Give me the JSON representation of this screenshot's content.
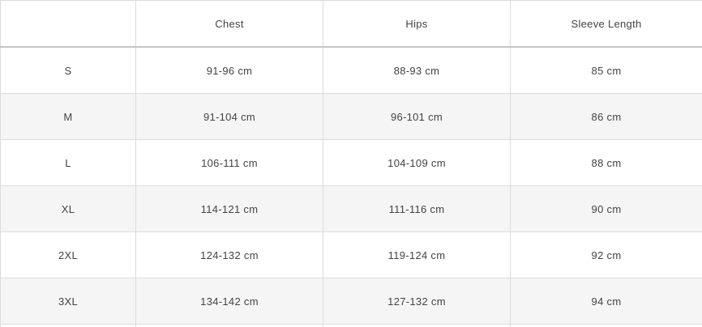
{
  "table": {
    "columns": [
      "",
      "Chest",
      "Hips",
      "Sleeve Length"
    ],
    "rows": [
      {
        "size": "S",
        "chest": "91-96 cm",
        "hips": "88-93 cm",
        "sleeve": "85 cm"
      },
      {
        "size": "M",
        "chest": "91-104 cm",
        "hips": "96-101 cm",
        "sleeve": "86 cm"
      },
      {
        "size": "L",
        "chest": "106-111 cm",
        "hips": "104-109 cm",
        "sleeve": "88 cm"
      },
      {
        "size": "XL",
        "chest": "114-121 cm",
        "hips": "111-116 cm",
        "sleeve": "90 cm"
      },
      {
        "size": "2XL",
        "chest": "124-132 cm",
        "hips": "119-124 cm",
        "sleeve": "92 cm"
      },
      {
        "size": "3XL",
        "chest": "134-142 cm",
        "hips": "127-132 cm",
        "sleeve": "94 cm"
      }
    ],
    "units": "cm"
  },
  "colors": {
    "row_stripe": "#f5f5f5",
    "cell_border": "#dcdcdc",
    "header_bottom_border": "#c6c6c6",
    "text": "#434343",
    "background": "#ffffff"
  }
}
